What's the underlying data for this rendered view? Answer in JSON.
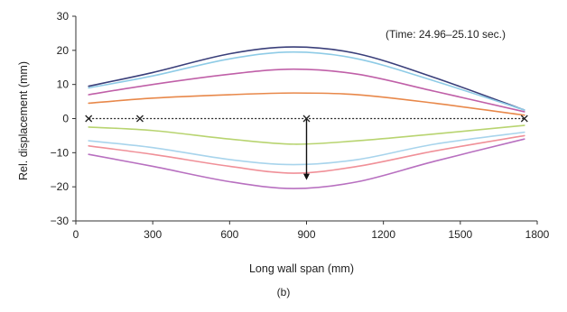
{
  "chart_data": {
    "type": "line",
    "xlabel": "Long wall span (mm)",
    "ylabel": "Rel. displacement (mm)",
    "xlim": [
      0,
      1800
    ],
    "ylim": [
      -30,
      30
    ],
    "x_ticks": [
      0,
      300,
      600,
      900,
      1200,
      1500,
      1800
    ],
    "y_ticks": [
      -30,
      -20,
      -10,
      0,
      10,
      20,
      30
    ],
    "grid": false,
    "annotation": "(Time: 24.96–25.10 sec.)",
    "caption": "(b)",
    "x": [
      50,
      300,
      600,
      850,
      1100,
      1400,
      1750
    ],
    "series": [
      {
        "color": "#3a3f7a",
        "values": [
          9.5,
          13.5,
          19,
          21,
          19,
          12,
          2.5
        ]
      },
      {
        "color": "#8ecbe6",
        "values": [
          9,
          12.5,
          17.5,
          19.5,
          17.5,
          11,
          2.5
        ]
      },
      {
        "color": "#c060a8",
        "values": [
          7,
          10,
          13,
          14.5,
          13,
          8,
          2
        ]
      },
      {
        "color": "#e8884a",
        "values": [
          4.5,
          6,
          7,
          7.5,
          7,
          4.5,
          1
        ]
      },
      {
        "color": "#b8d470",
        "values": [
          -2.5,
          -3.5,
          -6,
          -7.5,
          -6.5,
          -4.5,
          -2
        ]
      },
      {
        "color": "#a8d4ec",
        "values": [
          -6.5,
          -8.5,
          -12,
          -13.5,
          -12,
          -7.5,
          -4
        ]
      },
      {
        "color": "#f09098",
        "values": [
          -8,
          -10.5,
          -14,
          -16,
          -14,
          -9.5,
          -5
        ]
      },
      {
        "color": "#b870c0",
        "values": [
          -10.5,
          -14,
          -18.5,
          -20.5,
          -18.5,
          -12.5,
          -6
        ]
      }
    ],
    "markers": {
      "x": [
        50,
        250,
        900,
        1750
      ],
      "y": [
        0,
        0,
        0,
        0
      ]
    },
    "arrow": {
      "x": 900,
      "from": 0,
      "to": -18
    }
  }
}
